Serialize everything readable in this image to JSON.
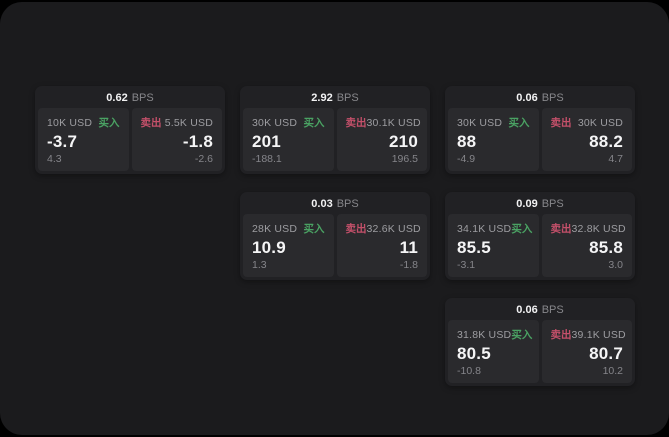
{
  "labels": {
    "bps": "BPS",
    "buy": "买入",
    "sell": "卖出"
  },
  "colors": {
    "window_bg": "#1b1b1d",
    "card_bg": "#212124",
    "panel_bg": "#2a2a2d",
    "buy_accent": "#4aa263",
    "sell_accent": "#c4506a",
    "primary_text": "#f5f5f6",
    "muted_text": "#87878b"
  },
  "cards": [
    {
      "spread": "0.62",
      "buy": {
        "notional": "10K USD",
        "price": "-3.7",
        "change": "4.3"
      },
      "sell": {
        "notional": "5.5K USD",
        "price": "-1.8",
        "change": "-2.6"
      }
    },
    {
      "spread": "2.92",
      "buy": {
        "notional": "30K USD",
        "price": "201",
        "change": "-188.1"
      },
      "sell": {
        "notional": "30.1K USD",
        "price": "210",
        "change": "196.5"
      }
    },
    {
      "spread": "0.06",
      "buy": {
        "notional": "30K USD",
        "price": "88",
        "change": "-4.9"
      },
      "sell": {
        "notional": "30K USD",
        "price": "88.2",
        "change": "4.7"
      }
    },
    {
      "spread": "0.03",
      "buy": {
        "notional": "28K USD",
        "price": "10.9",
        "change": "1.3"
      },
      "sell": {
        "notional": "32.6K USD",
        "price": "11",
        "change": "-1.8"
      }
    },
    {
      "spread": "0.09",
      "buy": {
        "notional": "34.1K USD",
        "price": "85.5",
        "change": "-3.1"
      },
      "sell": {
        "notional": "32.8K USD",
        "price": "85.8",
        "change": "3.0"
      }
    },
    {
      "spread": "0.06",
      "buy": {
        "notional": "31.8K USD",
        "price": "80.5",
        "change": "-10.8"
      },
      "sell": {
        "notional": "39.1K USD",
        "price": "80.7",
        "change": "10.2"
      }
    }
  ]
}
